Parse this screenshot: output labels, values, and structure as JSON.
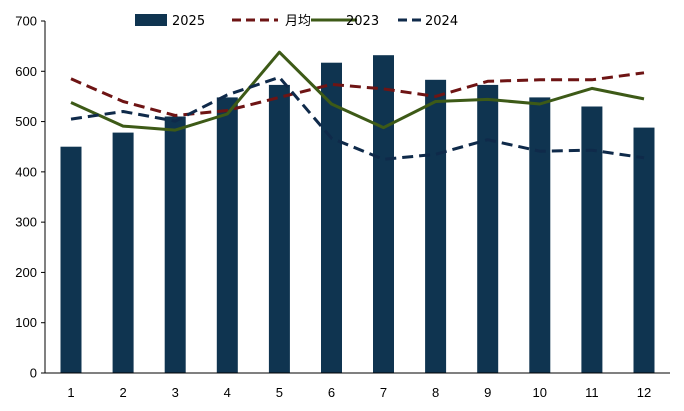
{
  "chart_data": {
    "type": "bar",
    "title": "",
    "xlabel": "",
    "ylabel": "",
    "categories": [
      "1",
      "2",
      "3",
      "4",
      "5",
      "6",
      "7",
      "8",
      "9",
      "10",
      "11",
      "12"
    ],
    "ylim": [
      0,
      700
    ],
    "y_ticks": [
      "0",
      "100",
      "200",
      "300",
      "400",
      "500",
      "600",
      "700"
    ],
    "grid": false,
    "legend_position": "top-center",
    "series": [
      {
        "name": "2025",
        "kind": "bar",
        "color": "#0f3450",
        "style": "solid",
        "values": [
          450,
          478,
          510,
          548,
          573,
          617,
          632,
          583,
          573,
          548,
          530,
          488
        ]
      },
      {
        "name": "月均",
        "kind": "line",
        "color": "#6e1414",
        "style": "dashed",
        "values": [
          585,
          540,
          512,
          522,
          548,
          574,
          565,
          550,
          580,
          583,
          583,
          597
        ]
      },
      {
        "name": "2023",
        "kind": "line",
        "color": "#3d5a17",
        "style": "solid",
        "values": [
          538,
          491,
          483,
          515,
          638,
          535,
          488,
          540,
          544,
          535,
          566,
          545
        ]
      },
      {
        "name": "2024",
        "kind": "line",
        "color": "#0f2a4a",
        "style": "dashed",
        "values": [
          505,
          520,
          501,
          553,
          588,
          467,
          425,
          435,
          464,
          441,
          443,
          428
        ]
      }
    ]
  }
}
